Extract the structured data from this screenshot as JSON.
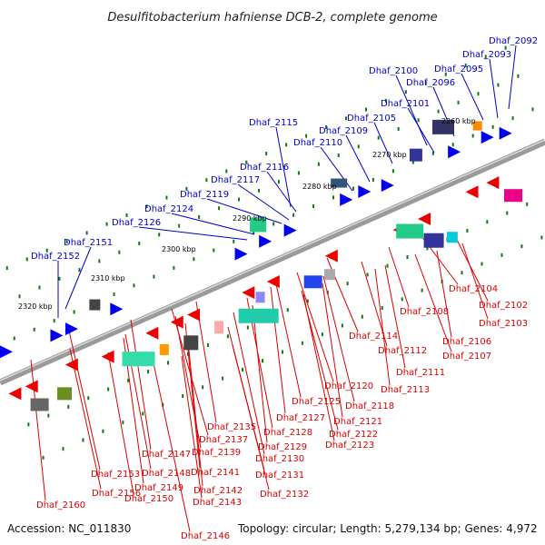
{
  "title": "Desulfitobacterium hafniense DCB-2, complete genome",
  "accession": "Accession: NC_011830",
  "topology": "Topology: circular; Length: 5,279,134 bp; Genes: 4,972",
  "colors": {
    "backbone": "#8a8a8a",
    "forward_label": "#0000cc",
    "reverse_label": "#dd0000",
    "forward_gene": "#0000ee",
    "reverse_gene": "#ee0000",
    "tick": "#117711"
  },
  "scale_labels": [
    "2320 kbp",
    "2310 kbp",
    "2300 kbp",
    "2290 kbp",
    "2280 kbp",
    "2270 kbp",
    "2260 kbp"
  ],
  "top_labels": [
    "Dhaf_2092",
    "Dhaf_2093",
    "Dhaf_2095",
    "Dhaf_2096",
    "Dhaf_2100",
    "Dhaf_2101",
    "Dhaf_2105",
    "Dhaf_2109",
    "Dhaf_2110",
    "Dhaf_2115",
    "Dhaf_2116",
    "Dhaf_2117",
    "Dhaf_2119",
    "Dhaf_2124",
    "Dhaf_2126",
    "Dhaf_2151",
    "Dhaf_2152"
  ],
  "bottom_labels": [
    "Dhaf_2104",
    "Dhaf_2102",
    "Dhaf_2103",
    "Dhaf_2108",
    "Dhaf_2106",
    "Dhaf_2107",
    "Dhaf_2114",
    "Dhaf_2112",
    "Dhaf_2111",
    "Dhaf_2113",
    "Dhaf_2120",
    "Dhaf_2118",
    "Dhaf_2125",
    "Dhaf_2121",
    "Dhaf_2127",
    "Dhaf_2122",
    "Dhaf_2123",
    "Dhaf_2128",
    "Dhaf_2135",
    "Dhaf_2129",
    "Dhaf_2137",
    "Dhaf_2130",
    "Dhaf_2139",
    "Dhaf_2147",
    "Dhaf_2141",
    "Dhaf_2131",
    "Dhaf_2153",
    "Dhaf_2148",
    "Dhaf_2149",
    "Dhaf_2142",
    "Dhaf_2132",
    "Dhaf_2156",
    "Dhaf_2150",
    "Dhaf_2143",
    "Dhaf_2160",
    "Dhaf_2146"
  ]
}
